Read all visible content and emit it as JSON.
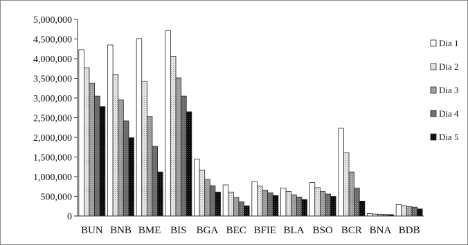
{
  "chart_data": {
    "type": "bar",
    "categories": [
      "BUN",
      "BNB",
      "BME",
      "BIS",
      "BGA",
      "BEC",
      "BFIE",
      "BLA",
      "BSO",
      "BCR",
      "BNA",
      "BDB"
    ],
    "series": [
      {
        "name": "Dia 1",
        "color": "#ffffff",
        "values": [
          4230000,
          4350000,
          4510000,
          4710000,
          1450000,
          790000,
          880000,
          710000,
          850000,
          2230000,
          60000,
          290000
        ]
      },
      {
        "name": "Dia 2",
        "color": "#e6e6e6",
        "values": [
          3770000,
          3600000,
          3420000,
          4060000,
          1170000,
          610000,
          760000,
          620000,
          720000,
          1610000,
          50000,
          260000
        ]
      },
      {
        "name": "Dia 3",
        "color": "#a6a6a6",
        "values": [
          3380000,
          2950000,
          2530000,
          3510000,
          930000,
          470000,
          660000,
          540000,
          620000,
          1120000,
          45000,
          240000
        ]
      },
      {
        "name": "Dia 4",
        "color": "#707070",
        "values": [
          3050000,
          2420000,
          1770000,
          3050000,
          770000,
          360000,
          590000,
          480000,
          560000,
          710000,
          40000,
          225000
        ]
      },
      {
        "name": "Dia 5",
        "color": "#111111",
        "values": [
          2780000,
          1990000,
          1120000,
          2650000,
          610000,
          260000,
          520000,
          420000,
          500000,
          380000,
          35000,
          180000
        ]
      }
    ],
    "y_ticks": [
      "0",
      "500,000",
      "1,000,000",
      "1,500,000",
      "2,000,000",
      "2,500,000",
      "3,000,000",
      "3,500,000",
      "4,000,000",
      "4,500,000",
      "5,000,000"
    ],
    "ylim": [
      0,
      5000000
    ],
    "grid": false,
    "legend_position": "right"
  }
}
